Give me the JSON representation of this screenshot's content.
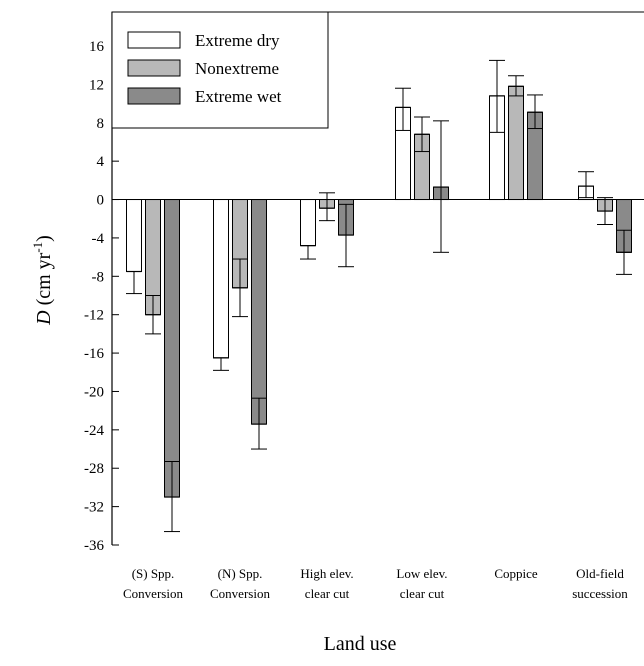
{
  "chart_data": {
    "type": "bar",
    "title": "",
    "xlabel": "Land use",
    "ylabel": {
      "var": "D",
      "unit_prefix": " (cm yr",
      "unit_sup": "-1",
      "unit_suffix": ")"
    },
    "ylim": [
      -36,
      20
    ],
    "yticks": [
      16,
      12,
      8,
      4,
      0,
      -4,
      -8,
      -12,
      -16,
      -20,
      -24,
      -28,
      -32,
      -36
    ],
    "categories": [
      [
        "(S) Spp.",
        "Conversion"
      ],
      [
        "(N) Spp.",
        "Conversion"
      ],
      [
        "High elev.",
        "clear cut"
      ],
      [
        "Low elev.",
        "clear cut"
      ],
      [
        "Coppice"
      ],
      [
        "Old-field",
        "succession"
      ]
    ],
    "series": [
      {
        "name": "Extreme dry",
        "color": "#ffffff",
        "values": [
          -7.5,
          -16.5,
          -4.8,
          9.6,
          10.8,
          1.4
        ],
        "err_low": [
          -9.8,
          -17.8,
          -6.2,
          7.2,
          7.0,
          0.2
        ],
        "err_high": [
          -7.5,
          -16.5,
          -4.8,
          11.6,
          14.5,
          2.9
        ]
      },
      {
        "name": "Nonextreme",
        "color": "#b8b8b8",
        "values": [
          -12.0,
          -9.2,
          -0.9,
          6.8,
          11.8,
          -1.2
        ],
        "err_low": [
          -14.0,
          -12.2,
          -2.2,
          5.0,
          10.8,
          -2.6
        ],
        "err_high": [
          -10.0,
          -6.2,
          0.7,
          8.6,
          12.9,
          0.2
        ]
      },
      {
        "name": "Extreme wet",
        "color": "#8a8a8a",
        "values": [
          -31.0,
          -23.4,
          -3.7,
          1.3,
          9.1,
          -5.5
        ],
        "err_low": [
          -34.6,
          -26.0,
          -7.0,
          -5.5,
          7.4,
          -7.8
        ],
        "err_high": [
          -27.3,
          -20.7,
          -0.5,
          8.2,
          10.9,
          -3.2
        ]
      }
    ],
    "legend_position": "top-left",
    "grid": false
  }
}
